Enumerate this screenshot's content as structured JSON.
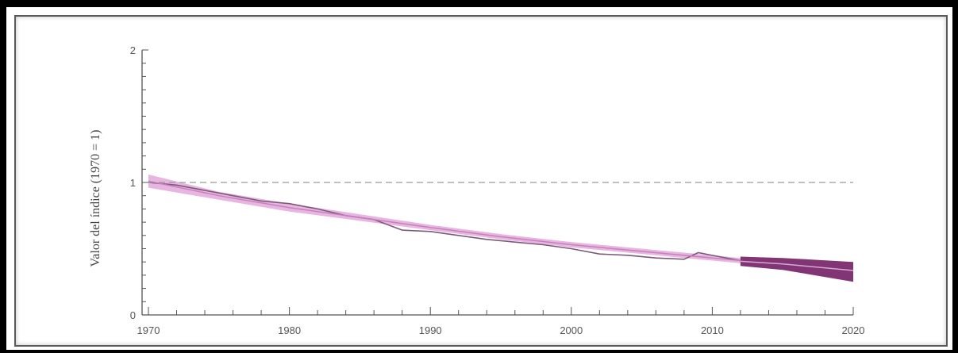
{
  "chart_data": {
    "type": "line",
    "title": "",
    "xlabel": "",
    "ylabel": "Valor del índice (1970 = 1)",
    "xlim": [
      1970,
      2020
    ],
    "ylim": [
      0,
      2
    ],
    "x_ticks": [
      1970,
      1980,
      1990,
      2000,
      2010,
      2020
    ],
    "y_ticks": [
      0,
      1,
      2
    ],
    "reference_line": {
      "y": 1,
      "style": "dashed"
    },
    "grid": false,
    "series": [
      {
        "style": "index-line",
        "color": "#7a5a78",
        "x": [
          1970,
          1972,
          1974,
          1976,
          1978,
          1980,
          1982,
          1984,
          1986,
          1988,
          1990,
          1992,
          1994,
          1996,
          1998,
          2000,
          2002,
          2004,
          2006,
          2008,
          2009,
          2010,
          2012
        ],
        "y": [
          1.0,
          0.98,
          0.94,
          0.9,
          0.86,
          0.84,
          0.8,
          0.75,
          0.72,
          0.64,
          0.63,
          0.6,
          0.57,
          0.55,
          0.53,
          0.5,
          0.46,
          0.45,
          0.43,
          0.42,
          0.47,
          0.45,
          0.41
        ]
      },
      {
        "style": "confidence-band",
        "color": "#e4a8dc",
        "x": [
          1970,
          1975,
          1980,
          1985,
          1990,
          1995,
          2000,
          2005,
          2010,
          2012
        ],
        "lower": [
          0.96,
          0.87,
          0.78,
          0.71,
          0.64,
          0.57,
          0.51,
          0.46,
          0.41,
          0.39
        ],
        "upper": [
          1.06,
          0.93,
          0.84,
          0.76,
          0.68,
          0.61,
          0.55,
          0.5,
          0.45,
          0.43
        ],
        "mid": [
          1.01,
          0.9,
          0.81,
          0.735,
          0.66,
          0.59,
          0.53,
          0.48,
          0.43,
          0.41
        ]
      },
      {
        "style": "projection-band",
        "color": "#7a2a6e",
        "x": [
          2012,
          2015,
          2020
        ],
        "lower": [
          0.37,
          0.34,
          0.25
        ],
        "upper": [
          0.44,
          0.43,
          0.4
        ],
        "mid": [
          0.405,
          0.385,
          0.335
        ]
      }
    ]
  }
}
